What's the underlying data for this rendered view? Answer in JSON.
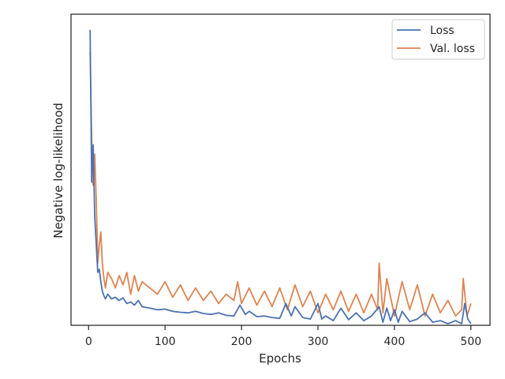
{
  "chart_data": {
    "type": "line",
    "title": "",
    "xlabel": "Epochs",
    "ylabel": "Negative log-likelihood",
    "xlim": [
      -23,
      525
    ],
    "ylim": [
      0,
      1
    ],
    "x_ticks": [
      0,
      100,
      200,
      300,
      400,
      500
    ],
    "y_tick_labels": "none",
    "grid": false,
    "legend_position": "top-right",
    "series": [
      {
        "name": "Loss",
        "color": "#4c72b0",
        "x": [
          2,
          4,
          6,
          8,
          10,
          12,
          14,
          16,
          18,
          20,
          22,
          25,
          30,
          35,
          40,
          45,
          50,
          55,
          60,
          65,
          70,
          80,
          90,
          100,
          110,
          120,
          130,
          140,
          150,
          160,
          170,
          180,
          190,
          198,
          205,
          210,
          220,
          230,
          240,
          250,
          258,
          265,
          270,
          280,
          290,
          300,
          305,
          310,
          320,
          330,
          340,
          350,
          360,
          370,
          380,
          385,
          390,
          395,
          400,
          405,
          410,
          420,
          430,
          440,
          450,
          460,
          470,
          480,
          488,
          492,
          496,
          500
        ],
        "y": [
          0.95,
          0.46,
          0.58,
          0.35,
          0.26,
          0.17,
          0.18,
          0.14,
          0.11,
          0.095,
          0.085,
          0.1,
          0.085,
          0.09,
          0.08,
          0.088,
          0.07,
          0.075,
          0.065,
          0.08,
          0.06,
          0.055,
          0.05,
          0.052,
          0.045,
          0.042,
          0.04,
          0.045,
          0.038,
          0.035,
          0.04,
          0.032,
          0.03,
          0.065,
          0.035,
          0.045,
          0.028,
          0.03,
          0.025,
          0.022,
          0.07,
          0.03,
          0.06,
          0.025,
          0.02,
          0.07,
          0.02,
          0.03,
          0.015,
          0.055,
          0.018,
          0.04,
          0.015,
          0.03,
          0.06,
          0.01,
          0.055,
          0.015,
          0.05,
          0.01,
          0.045,
          0.012,
          0.02,
          0.04,
          0.01,
          0.015,
          0.005,
          0.015,
          0.005,
          0.07,
          0.02,
          0.005
        ]
      },
      {
        "name": "Val. loss",
        "color": "#dd8452",
        "x": [
          2,
          4,
          6,
          8,
          10,
          12,
          14,
          16,
          18,
          20,
          22,
          25,
          30,
          35,
          40,
          45,
          50,
          55,
          60,
          65,
          70,
          80,
          90,
          100,
          110,
          120,
          130,
          140,
          150,
          160,
          170,
          180,
          190,
          195,
          200,
          210,
          220,
          230,
          240,
          250,
          260,
          270,
          280,
          290,
          300,
          310,
          320,
          330,
          340,
          350,
          360,
          370,
          378,
          380,
          385,
          390,
          400,
          410,
          420,
          430,
          440,
          450,
          460,
          470,
          480,
          488,
          490,
          495,
          500
        ],
        "y": [
          0.88,
          0.6,
          0.45,
          0.55,
          0.4,
          0.2,
          0.26,
          0.3,
          0.2,
          0.15,
          0.12,
          0.17,
          0.15,
          0.12,
          0.16,
          0.13,
          0.17,
          0.1,
          0.16,
          0.11,
          0.14,
          0.12,
          0.1,
          0.14,
          0.09,
          0.13,
          0.08,
          0.12,
          0.08,
          0.11,
          0.07,
          0.1,
          0.08,
          0.14,
          0.07,
          0.12,
          0.065,
          0.11,
          0.06,
          0.12,
          0.05,
          0.13,
          0.06,
          0.11,
          0.04,
          0.1,
          0.05,
          0.11,
          0.045,
          0.1,
          0.04,
          0.1,
          0.05,
          0.2,
          0.04,
          0.15,
          0.03,
          0.14,
          0.05,
          0.13,
          0.03,
          0.1,
          0.04,
          0.08,
          0.03,
          0.05,
          0.15,
          0.03,
          0.07
        ]
      }
    ]
  }
}
